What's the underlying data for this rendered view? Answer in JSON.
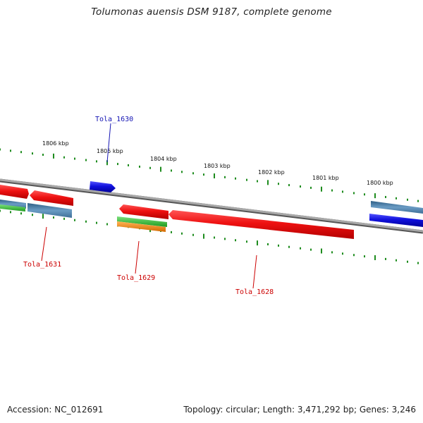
{
  "title": "Tolumonas auensis DSM 9187, complete genome",
  "footer": {
    "accession_label": "Accession:",
    "accession": "NC_012691",
    "topology_label": "Topology:",
    "topology": "circular",
    "length_label": "Length:",
    "length": "3,471,292 bp",
    "genes_label": "Genes:",
    "genes": "3,246"
  },
  "scale_labels": [
    "1806 kbp",
    "1805 kbp",
    "1804 kbp",
    "1803 kbp",
    "1802 kbp",
    "1801 kbp",
    "1800 kbp"
  ],
  "loci": [
    {
      "id": "Tola_1630",
      "color": "#1414b4"
    },
    {
      "id": "Tola_1631",
      "color": "#cc0000"
    },
    {
      "id": "Tola_1629",
      "color": "#cc0000"
    },
    {
      "id": "Tola_1628",
      "color": "#cc0000"
    }
  ],
  "colors": {
    "backbone": "#8a8a8a",
    "tick": "#1e8c1e",
    "gene_red": "#ee1111",
    "gene_blue": "#1111dd",
    "gene_steel": "#4a7ea8",
    "gene_green": "#33bb33",
    "gene_orange": "#ee8811"
  }
}
